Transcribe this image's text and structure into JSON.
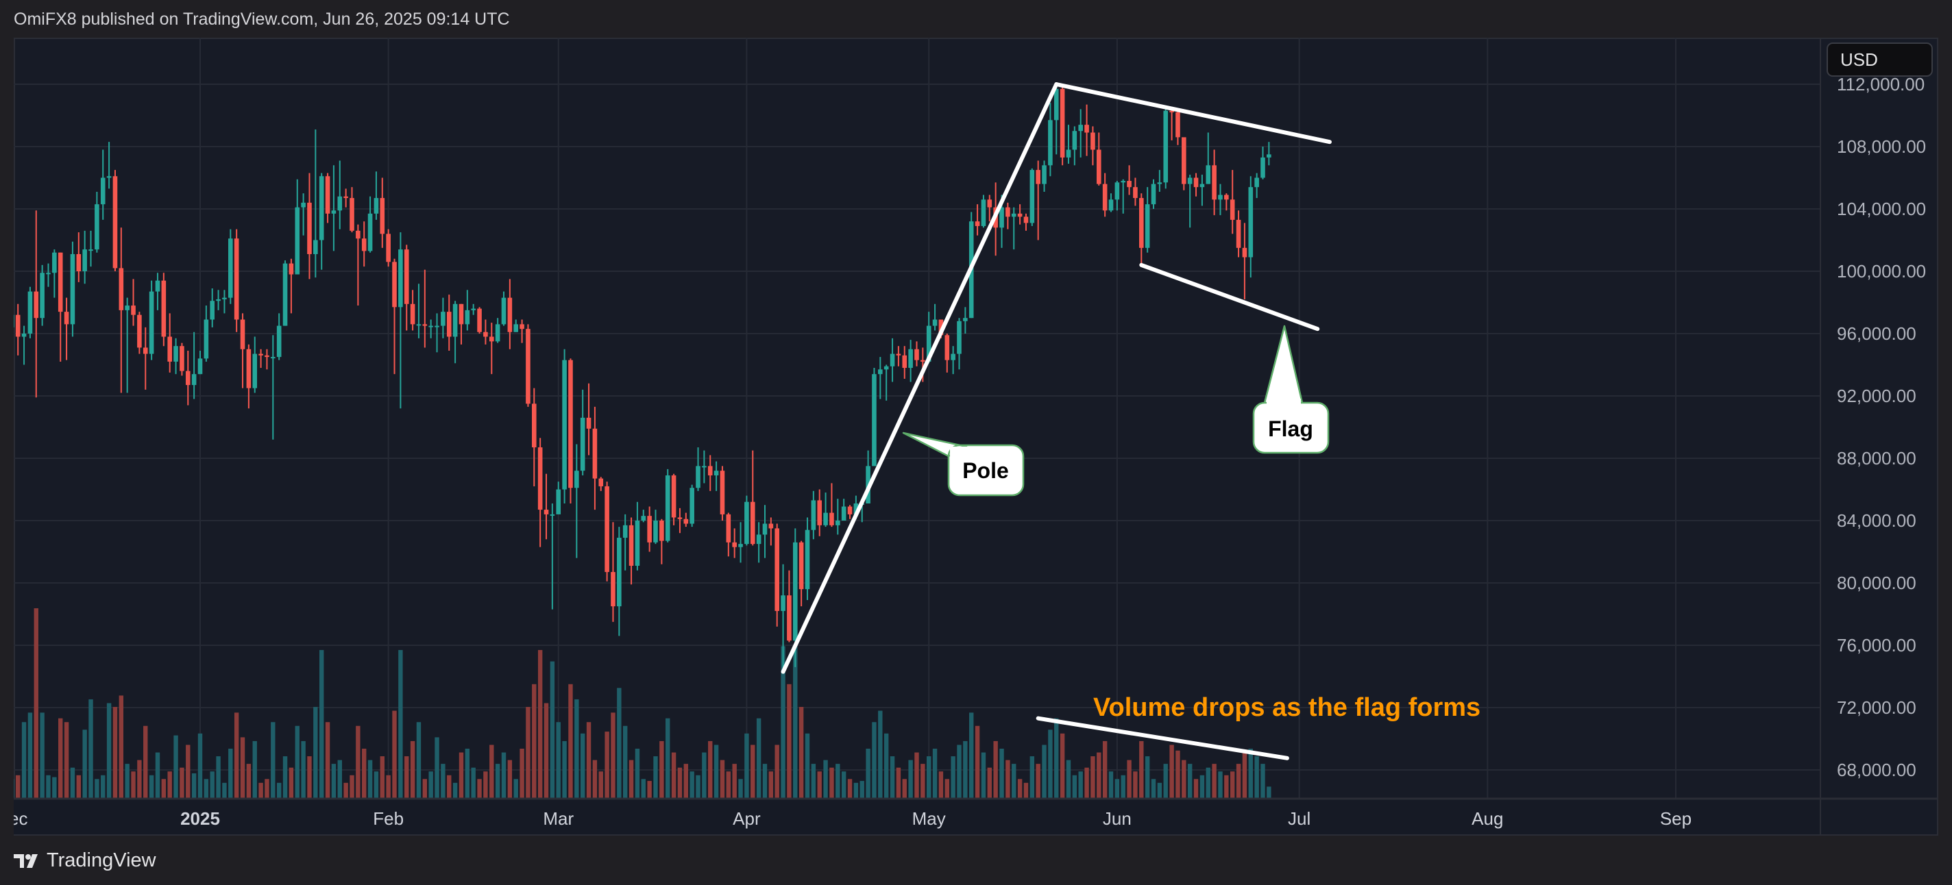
{
  "header": {
    "text": "OmiFX8 published on TradingView.com, Jun 26, 2025 09:14 UTC"
  },
  "currency_button": {
    "label": "USD"
  },
  "footer": {
    "brand": "TradingView",
    "logo_text": "TV"
  },
  "colors": {
    "up": "#26a69a",
    "down": "#f7584f",
    "vol_up": "#1f5f69",
    "vol_down": "#8c3c3a",
    "annotation": "#ffffff",
    "volume_note": "#ff9800",
    "callout_border": "#5fae6a",
    "grid": "#262a35"
  },
  "chart_data": {
    "type": "candlestick",
    "xlabel": "",
    "ylabel": "",
    "grid": true,
    "ylim": [
      66000,
      114500
    ],
    "xlim": [
      "2024-11-30",
      "2025-09-30"
    ],
    "y_ticks": [
      {
        "value": 112000,
        "label": "112,000.00"
      },
      {
        "value": 108000,
        "label": "108,000.00"
      },
      {
        "value": 104000,
        "label": "104,000.00"
      },
      {
        "value": 100000,
        "label": "100,000.00"
      },
      {
        "value": 96000,
        "label": "96,000.00"
      },
      {
        "value": 92000,
        "label": "92,000.00"
      },
      {
        "value": 88000,
        "label": "88,000.00"
      },
      {
        "value": 84000,
        "label": "84,000.00"
      },
      {
        "value": 80000,
        "label": "80,000.00"
      },
      {
        "value": 76000,
        "label": "76,000.00"
      },
      {
        "value": 72000,
        "label": "72,000.00"
      },
      {
        "value": 68000,
        "label": "68,000.00"
      }
    ],
    "x_ticks": [
      {
        "date": "2024-12-01",
        "label": "Dec"
      },
      {
        "date": "2025-01-01",
        "label": "2025"
      },
      {
        "date": "2025-02-01",
        "label": "Feb"
      },
      {
        "date": "2025-03-01",
        "label": "Mar"
      },
      {
        "date": "2025-04-01",
        "label": "Apr"
      },
      {
        "date": "2025-05-01",
        "label": "May"
      },
      {
        "date": "2025-06-01",
        "label": "Jun"
      },
      {
        "date": "2025-07-01",
        "label": "Jul"
      },
      {
        "date": "2025-08-01",
        "label": "Aug"
      },
      {
        "date": "2025-09-01",
        "label": "Sep"
      }
    ],
    "candles": {
      "first_date": "2024-12-01",
      "first_open": 96400,
      "close": [
        97200,
        95800,
        96000,
        98700,
        97000,
        99900,
        99900,
        101200,
        97400,
        96600,
        101100,
        100000,
        101400,
        101400,
        104300,
        106000,
        106100,
        100200,
        97500,
        97800,
        97200,
        95100,
        94700,
        98700,
        99400,
        95800,
        94200,
        95200,
        93600,
        92700,
        93400,
        94400,
        96900,
        98100,
        98200,
        98300,
        102100,
        96900,
        95000,
        92500,
        94700,
        94600,
        94500,
        94500,
        96500,
        100500,
        99800,
        104100,
        104400,
        101100,
        102000,
        106100,
        103700,
        103900,
        104800,
        104700,
        102600,
        102100,
        101300,
        103700,
        104700,
        102400,
        100600,
        97700,
        101400,
        97900,
        96600,
        96600,
        96500,
        96500,
        96500,
        97400,
        95800,
        97900,
        96600,
        97500,
        97600,
        96100,
        95800,
        95500,
        96600,
        98300,
        96100,
        96600,
        96300,
        91500,
        88700,
        84700,
        84400,
        84400,
        86000,
        94300,
        86100,
        87200,
        90600,
        89900,
        86700,
        86200,
        80700,
        78500,
        82900,
        83700,
        81100,
        84000,
        84300,
        82600,
        84000,
        82700,
        86900,
        84200,
        84100,
        83800,
        86100,
        87500,
        87500,
        86900,
        87200,
        84400,
        82600,
        82300,
        82500,
        85200,
        82500,
        83100,
        83800,
        83500,
        78200,
        79200,
        76300,
        82600,
        79600,
        83400,
        85300,
        83700,
        84500,
        83700,
        84000,
        84900,
        84400,
        85100,
        85100,
        87500,
        93400,
        93700,
        93900,
        94700,
        94600,
        93800,
        95000,
        94300,
        94200,
        96500,
        96900,
        95900,
        94300,
        94700,
        96800,
        97000,
        103200,
        102900,
        104600,
        104100,
        102800,
        104100,
        103500,
        103700,
        103500,
        103100,
        106500,
        105600,
        106800,
        109700,
        111700,
        107300,
        107800,
        109000,
        109400,
        108900,
        107800,
        105600,
        103900,
        104600,
        105700,
        105800,
        105400,
        104700,
        101500,
        104300,
        105600,
        105700,
        110300,
        110200,
        108600,
        105600,
        106000,
        105400,
        105600,
        106800,
        104600,
        104900,
        104600,
        103300,
        101500,
        100900,
        105400,
        106000,
        107300,
        107500
      ],
      "high": [
        98200,
        97900,
        96500,
        99000,
        103900,
        100400,
        100500,
        101400,
        101200,
        98300,
        101900,
        102500,
        102600,
        102600,
        105100,
        107800,
        108300,
        106500,
        102800,
        98300,
        99500,
        97400,
        96400,
        99400,
        99900,
        99900,
        97300,
        95700,
        95400,
        94900,
        96100,
        94900,
        97800,
        98900,
        98800,
        98800,
        102700,
        102700,
        97300,
        95300,
        95800,
        95000,
        95000,
        95900,
        97300,
        100700,
        100800,
        105900,
        105000,
        106300,
        109100,
        106300,
        106300,
        106800,
        107100,
        105300,
        105400,
        103000,
        103200,
        104800,
        106400,
        106000,
        102700,
        100800,
        102500,
        101700,
        98800,
        99200,
        100100,
        96900,
        97300,
        98300,
        98500,
        98100,
        97900,
        98800,
        97900,
        97700,
        96900,
        96700,
        97000,
        98700,
        99500,
        96900,
        96900,
        96600,
        92500,
        89300,
        87000,
        85100,
        86500,
        95000,
        94400,
        88900,
        92400,
        92800,
        91300,
        86800,
        86500,
        83900,
        83600,
        84400,
        84200,
        85200,
        84700,
        84900,
        84700,
        84100,
        87300,
        87000,
        84800,
        84500,
        86300,
        88700,
        88500,
        88200,
        87800,
        87500,
        84500,
        83500,
        83900,
        85600,
        88500,
        83900,
        85000,
        84200,
        83800,
        81200,
        80800,
        83500,
        82700,
        84200,
        85900,
        86000,
        85800,
        86400,
        85400,
        85400,
        85000,
        85600,
        85300,
        88500,
        93800,
        94500,
        94000,
        95700,
        95200,
        95200,
        95600,
        95500,
        95100,
        97400,
        97900,
        96900,
        96000,
        95200,
        97000,
        97700,
        103800,
        104300,
        104900,
        104900,
        105700,
        104900,
        104400,
        104100,
        104300,
        103700,
        106600,
        107100,
        107100,
        110800,
        111900,
        111800,
        109400,
        109300,
        110400,
        110700,
        109300,
        108900,
        106300,
        105000,
        105800,
        105900,
        106800,
        106000,
        105000,
        105400,
        105900,
        106500,
        110500,
        110500,
        110400,
        108500,
        106200,
        106300,
        106200,
        108900,
        107800,
        105600,
        105000,
        106500,
        103900,
        103100,
        106100,
        106300,
        108000,
        108300
      ],
      "low": [
        96000,
        94600,
        94000,
        95700,
        91900,
        96500,
        99000,
        98300,
        94200,
        94300,
        95800,
        99300,
        99200,
        100300,
        101200,
        103300,
        105300,
        100000,
        92200,
        92200,
        96500,
        94700,
        92400,
        94300,
        97500,
        95200,
        93500,
        93400,
        93300,
        91400,
        91800,
        93400,
        94200,
        96400,
        97500,
        97300,
        97900,
        96100,
        92500,
        91200,
        92200,
        93800,
        93700,
        89200,
        94300,
        96500,
        97300,
        99900,
        102300,
        99500,
        99600,
        100100,
        103100,
        101300,
        102700,
        104100,
        102500,
        97800,
        100300,
        101200,
        103300,
        101500,
        100300,
        93400,
        91200,
        96200,
        96200,
        95700,
        95100,
        95700,
        94800,
        95700,
        94900,
        94100,
        95300,
        96200,
        97200,
        96000,
        95300,
        93400,
        95400,
        96500,
        95000,
        96100,
        95400,
        91300,
        86200,
        82300,
        82800,
        78300,
        84800,
        85100,
        85100,
        81600,
        86900,
        88200,
        84700,
        85900,
        80100,
        77500,
        76600,
        80800,
        79900,
        80800,
        83900,
        82000,
        82500,
        81200,
        82600,
        83700,
        83200,
        83600,
        83600,
        85900,
        86400,
        85900,
        85900,
        84000,
        81700,
        81600,
        81300,
        82400,
        82400,
        81300,
        81600,
        82400,
        77200,
        74500,
        76200,
        74600,
        78500,
        78900,
        82800,
        83000,
        83600,
        83600,
        83100,
        84100,
        84100,
        84100,
        83900,
        85100,
        87500,
        91800,
        91700,
        92900,
        93900,
        93100,
        92900,
        93900,
        92900,
        94100,
        96200,
        95700,
        93500,
        93400,
        93700,
        96000,
        97000,
        102300,
        102800,
        103200,
        101000,
        101500,
        102700,
        101400,
        103000,
        102600,
        102900,
        102000,
        105100,
        106100,
        107500,
        106800,
        106900,
        106800,
        107300,
        107400,
        106800,
        105500,
        103500,
        103800,
        103900,
        103700,
        104900,
        104200,
        100500,
        101200,
        104000,
        105100,
        105300,
        108400,
        108100,
        105200,
        102800,
        104800,
        104200,
        105600,
        103600,
        103600,
        103900,
        102400,
        100900,
        98200,
        99600,
        104700,
        105900,
        106800
      ]
    },
    "volume_relative": [
      10,
      12,
      40,
      45,
      100,
      45,
      12,
      11,
      42,
      40,
      16,
      12,
      36,
      52,
      10,
      12,
      50,
      48,
      54,
      18,
      14,
      20,
      38,
      12,
      24,
      10,
      14,
      33,
      16,
      28,
      13,
      34,
      10,
      14,
      22,
      8,
      26,
      45,
      32,
      18,
      30,
      8,
      10,
      40,
      8,
      22,
      16,
      38,
      30,
      22,
      48,
      78,
      40,
      18,
      20,
      8,
      12,
      38,
      26,
      20,
      14,
      22,
      12,
      46,
      78,
      22,
      30,
      40,
      10,
      14,
      32,
      18,
      12,
      8,
      24,
      26,
      16,
      10,
      14,
      28,
      18,
      24,
      20,
      10,
      26,
      48,
      60,
      78,
      50,
      72,
      40,
      30,
      60,
      52,
      34,
      40,
      20,
      14,
      35,
      45,
      58,
      38,
      20,
      26,
      10,
      9,
      22,
      30,
      42,
      24,
      16,
      18,
      14,
      12,
      24,
      30,
      28,
      20,
      14,
      18,
      10,
      34,
      28,
      42,
      18,
      14,
      28,
      80,
      60,
      80,
      48,
      34,
      18,
      14,
      20,
      16,
      18,
      14,
      10,
      8,
      9,
      26,
      40,
      46,
      34,
      22,
      16,
      10,
      20,
      24,
      18,
      22,
      26,
      14,
      10,
      22,
      28,
      30,
      45,
      38,
      24,
      16,
      30,
      26,
      20,
      18,
      10,
      8,
      22,
      18,
      28,
      36,
      42,
      34,
      20,
      12,
      14,
      16,
      22,
      24,
      30,
      14,
      10,
      12,
      20,
      14,
      30,
      22,
      10,
      8,
      18,
      28,
      25,
      20,
      18,
      10,
      12,
      16,
      18,
      14,
      12,
      14,
      18,
      24,
      26,
      22,
      18,
      6
    ],
    "annotations": {
      "pole_line": {
        "from": {
          "date": "2025-04-07",
          "price": 74300
        },
        "to": {
          "date": "2025-05-22",
          "price": 112000
        }
      },
      "flag_upper": {
        "from": {
          "date": "2025-05-22",
          "price": 112000
        },
        "to": {
          "date": "2025-07-06",
          "price": 108300
        }
      },
      "flag_lower": {
        "from": {
          "date": "2025-06-05",
          "price": 100400
        },
        "to": {
          "date": "2025-07-04",
          "price": 96300
        }
      },
      "volume_trend": {
        "from": {
          "date": "2025-05-19",
          "volume": 42
        },
        "to": {
          "date": "2025-06-29",
          "volume": 21
        }
      },
      "pole_label": "Pole",
      "flag_label": "Flag",
      "volume_note": "Volume drops as the flag forms"
    }
  }
}
